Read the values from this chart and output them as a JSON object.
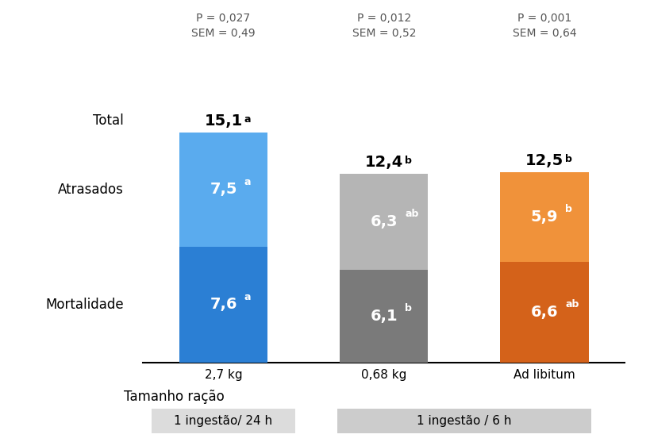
{
  "bars": [
    {
      "label": "2,7 kg",
      "mortality": 7.6,
      "delayed": 7.5,
      "total": 15.1,
      "color_bottom": "#2B7FD4",
      "color_top": "#5AABEE",
      "mortality_label": "7,6",
      "mortality_sup": "a",
      "delayed_label": "7,5",
      "delayed_sup": "a",
      "total_label": "15,1",
      "total_sup": "a",
      "stat_line1": "P = 0,027",
      "stat_line2": "SEM = 0,49"
    },
    {
      "label": "0,68 kg",
      "mortality": 6.1,
      "delayed": 6.3,
      "total": 12.4,
      "color_bottom": "#7A7A7A",
      "color_top": "#B5B5B5",
      "mortality_label": "6,1",
      "mortality_sup": "b",
      "delayed_label": "6,3",
      "delayed_sup": "ab",
      "total_label": "12,4",
      "total_sup": "b",
      "stat_line1": "P = 0,012",
      "stat_line2": "SEM = 0,52"
    },
    {
      "label": "Ad libitum",
      "mortality": 6.6,
      "delayed": 5.9,
      "total": 12.5,
      "color_bottom": "#D4621A",
      "color_top": "#F0923A",
      "mortality_label": "6,6",
      "mortality_sup": "ab",
      "delayed_label": "5,9",
      "delayed_sup": "b",
      "total_label": "12,5",
      "total_sup": "b",
      "stat_line1": "P = 0,001",
      "stat_line2": "SEM = 0,64"
    }
  ],
  "ylim_max": 18,
  "bar_width": 0.55,
  "row_label_mortalidade": "Mortalidade",
  "row_label_atrasados": "Atrasados",
  "row_label_total": "Total",
  "xlabel_label": "Tamanho ração",
  "legend_left": "1 ingestão/ 24 h",
  "legend_right": "1 ingestão / 6 h",
  "bg_color": "#FFFFFF"
}
